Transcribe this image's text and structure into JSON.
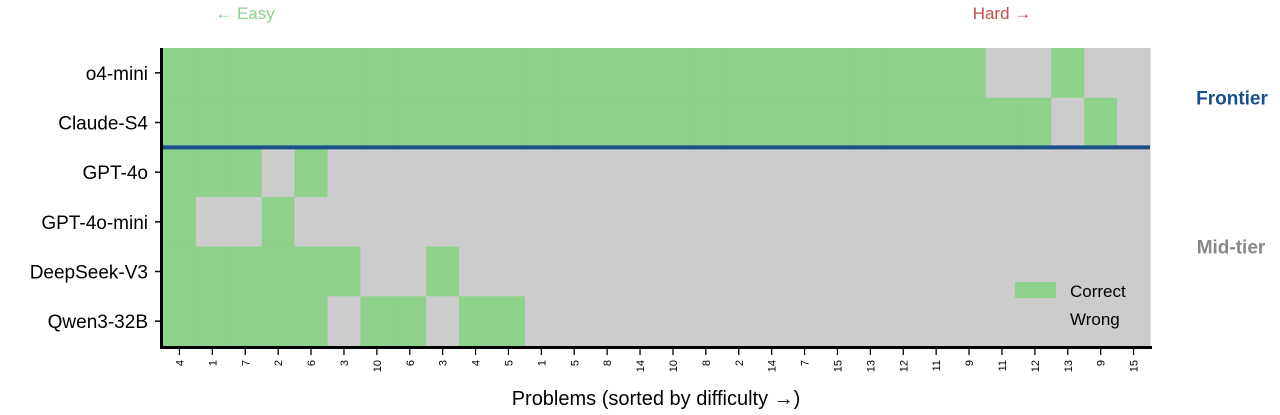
{
  "chart_data": {
    "type": "heatmap",
    "title": "",
    "xlabel": "Problems (sorted by difficulty →)",
    "ylabel": "",
    "top_annotations": {
      "easy": "← Easy",
      "hard": "Hard →"
    },
    "x_tick_labels": [
      "4",
      "1",
      "7",
      "2",
      "6",
      "3",
      "10",
      "6",
      "3",
      "4",
      "5",
      "1",
      "5",
      "8",
      "14",
      "10",
      "8",
      "2",
      "14",
      "7",
      "15",
      "13",
      "12",
      "11",
      "9",
      "11",
      "12",
      "13",
      "9",
      "15"
    ],
    "rows": [
      "o4-mini",
      "Claude-S4",
      "GPT-4o",
      "GPT-4o-mini",
      "DeepSeek-V3",
      "Qwen3-32B"
    ],
    "groups": [
      {
        "label": "Frontier",
        "rows": [
          "o4-mini",
          "Claude-S4"
        ]
      },
      {
        "label": "Mid-tier",
        "rows": [
          "GPT-4o",
          "GPT-4o-mini",
          "DeepSeek-V3",
          "Qwen3-32B"
        ]
      }
    ],
    "values": [
      [
        1,
        1,
        1,
        1,
        1,
        1,
        1,
        1,
        1,
        1,
        1,
        1,
        1,
        1,
        1,
        1,
        1,
        1,
        1,
        1,
        1,
        1,
        1,
        1,
        1,
        0,
        0,
        1,
        0,
        0
      ],
      [
        1,
        1,
        1,
        1,
        1,
        1,
        1,
        1,
        1,
        1,
        1,
        1,
        1,
        1,
        1,
        1,
        1,
        1,
        1,
        1,
        1,
        1,
        1,
        1,
        1,
        1,
        1,
        0,
        1,
        0
      ],
      [
        1,
        1,
        1,
        0,
        1,
        0,
        0,
        0,
        0,
        0,
        0,
        0,
        0,
        0,
        0,
        0,
        0,
        0,
        0,
        0,
        0,
        0,
        0,
        0,
        0,
        0,
        0,
        0,
        0,
        0
      ],
      [
        1,
        0,
        0,
        1,
        0,
        0,
        0,
        0,
        0,
        0,
        0,
        0,
        0,
        0,
        0,
        0,
        0,
        0,
        0,
        0,
        0,
        0,
        0,
        0,
        0,
        0,
        0,
        0,
        0,
        0
      ],
      [
        1,
        1,
        1,
        1,
        1,
        1,
        0,
        0,
        1,
        0,
        0,
        0,
        0,
        0,
        0,
        0,
        0,
        0,
        0,
        0,
        0,
        0,
        0,
        0,
        0,
        0,
        0,
        0,
        0,
        0
      ],
      [
        1,
        1,
        1,
        1,
        1,
        0,
        1,
        1,
        0,
        1,
        1,
        0,
        0,
        0,
        0,
        0,
        0,
        0,
        0,
        0,
        0,
        0,
        0,
        0,
        0,
        0,
        0,
        0,
        0,
        0
      ]
    ],
    "legend": [
      {
        "label": "Correct",
        "value": 1,
        "color": "#8dd18b"
      },
      {
        "label": "Wrong",
        "value": 0,
        "color": "#cccccc"
      }
    ],
    "legend_position": "lower-right",
    "colors": {
      "correct": "#8dd18b",
      "wrong": "#cccccc",
      "divider": "#1a4f8c",
      "frontier_label": "#1a4f8c",
      "midtier_label": "#888888",
      "easy": "#8dd18b",
      "hard": "#c0504d",
      "axis": "#000000"
    }
  }
}
